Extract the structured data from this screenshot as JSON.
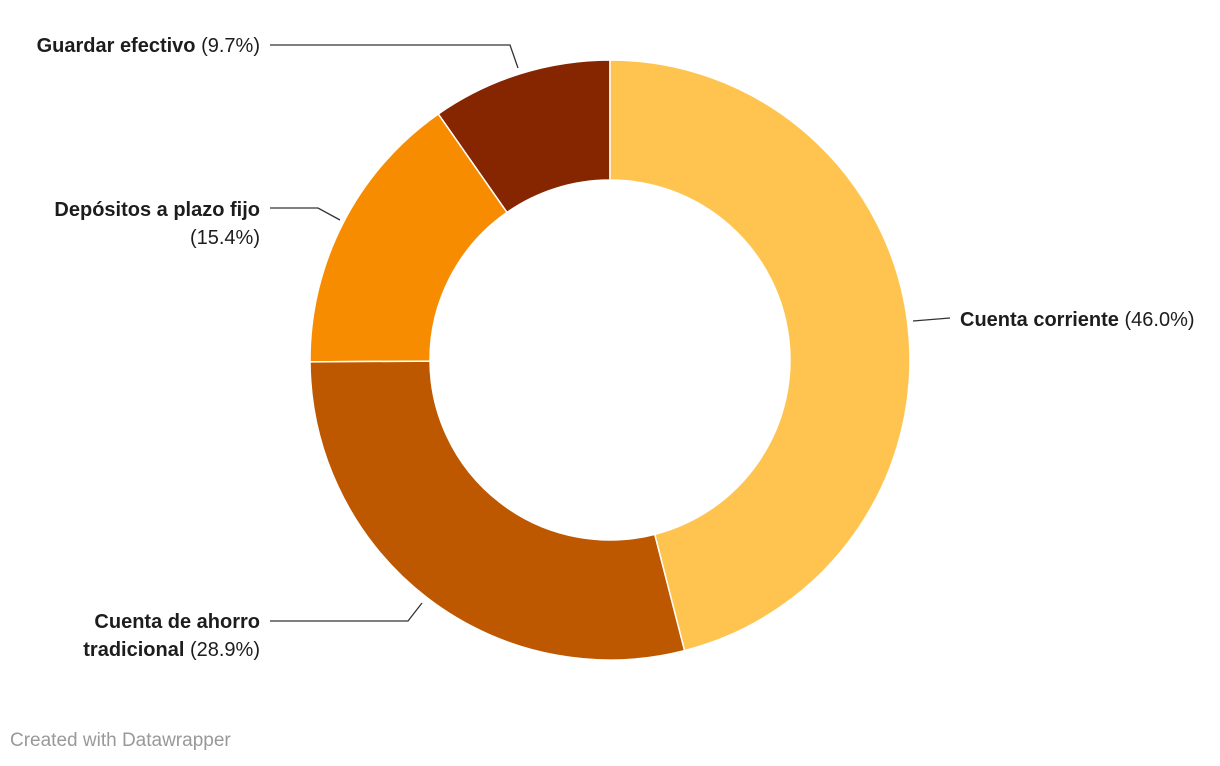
{
  "chart_data": {
    "type": "donut",
    "categories": [
      "Cuenta corriente",
      "Cuenta de ahorro tradicional",
      "Depósitos a plazo fijo",
      "Guardar efectivo"
    ],
    "values": [
      46.0,
      28.9,
      15.4,
      9.7
    ],
    "value_labels": [
      "(46.0%)",
      "(28.9%)",
      "(15.4%)",
      "(9.7%)"
    ],
    "colors": [
      "#fec44f",
      "#bd5800",
      "#f88c00",
      "#862600"
    ]
  },
  "credit": "Created with Datawrapper"
}
